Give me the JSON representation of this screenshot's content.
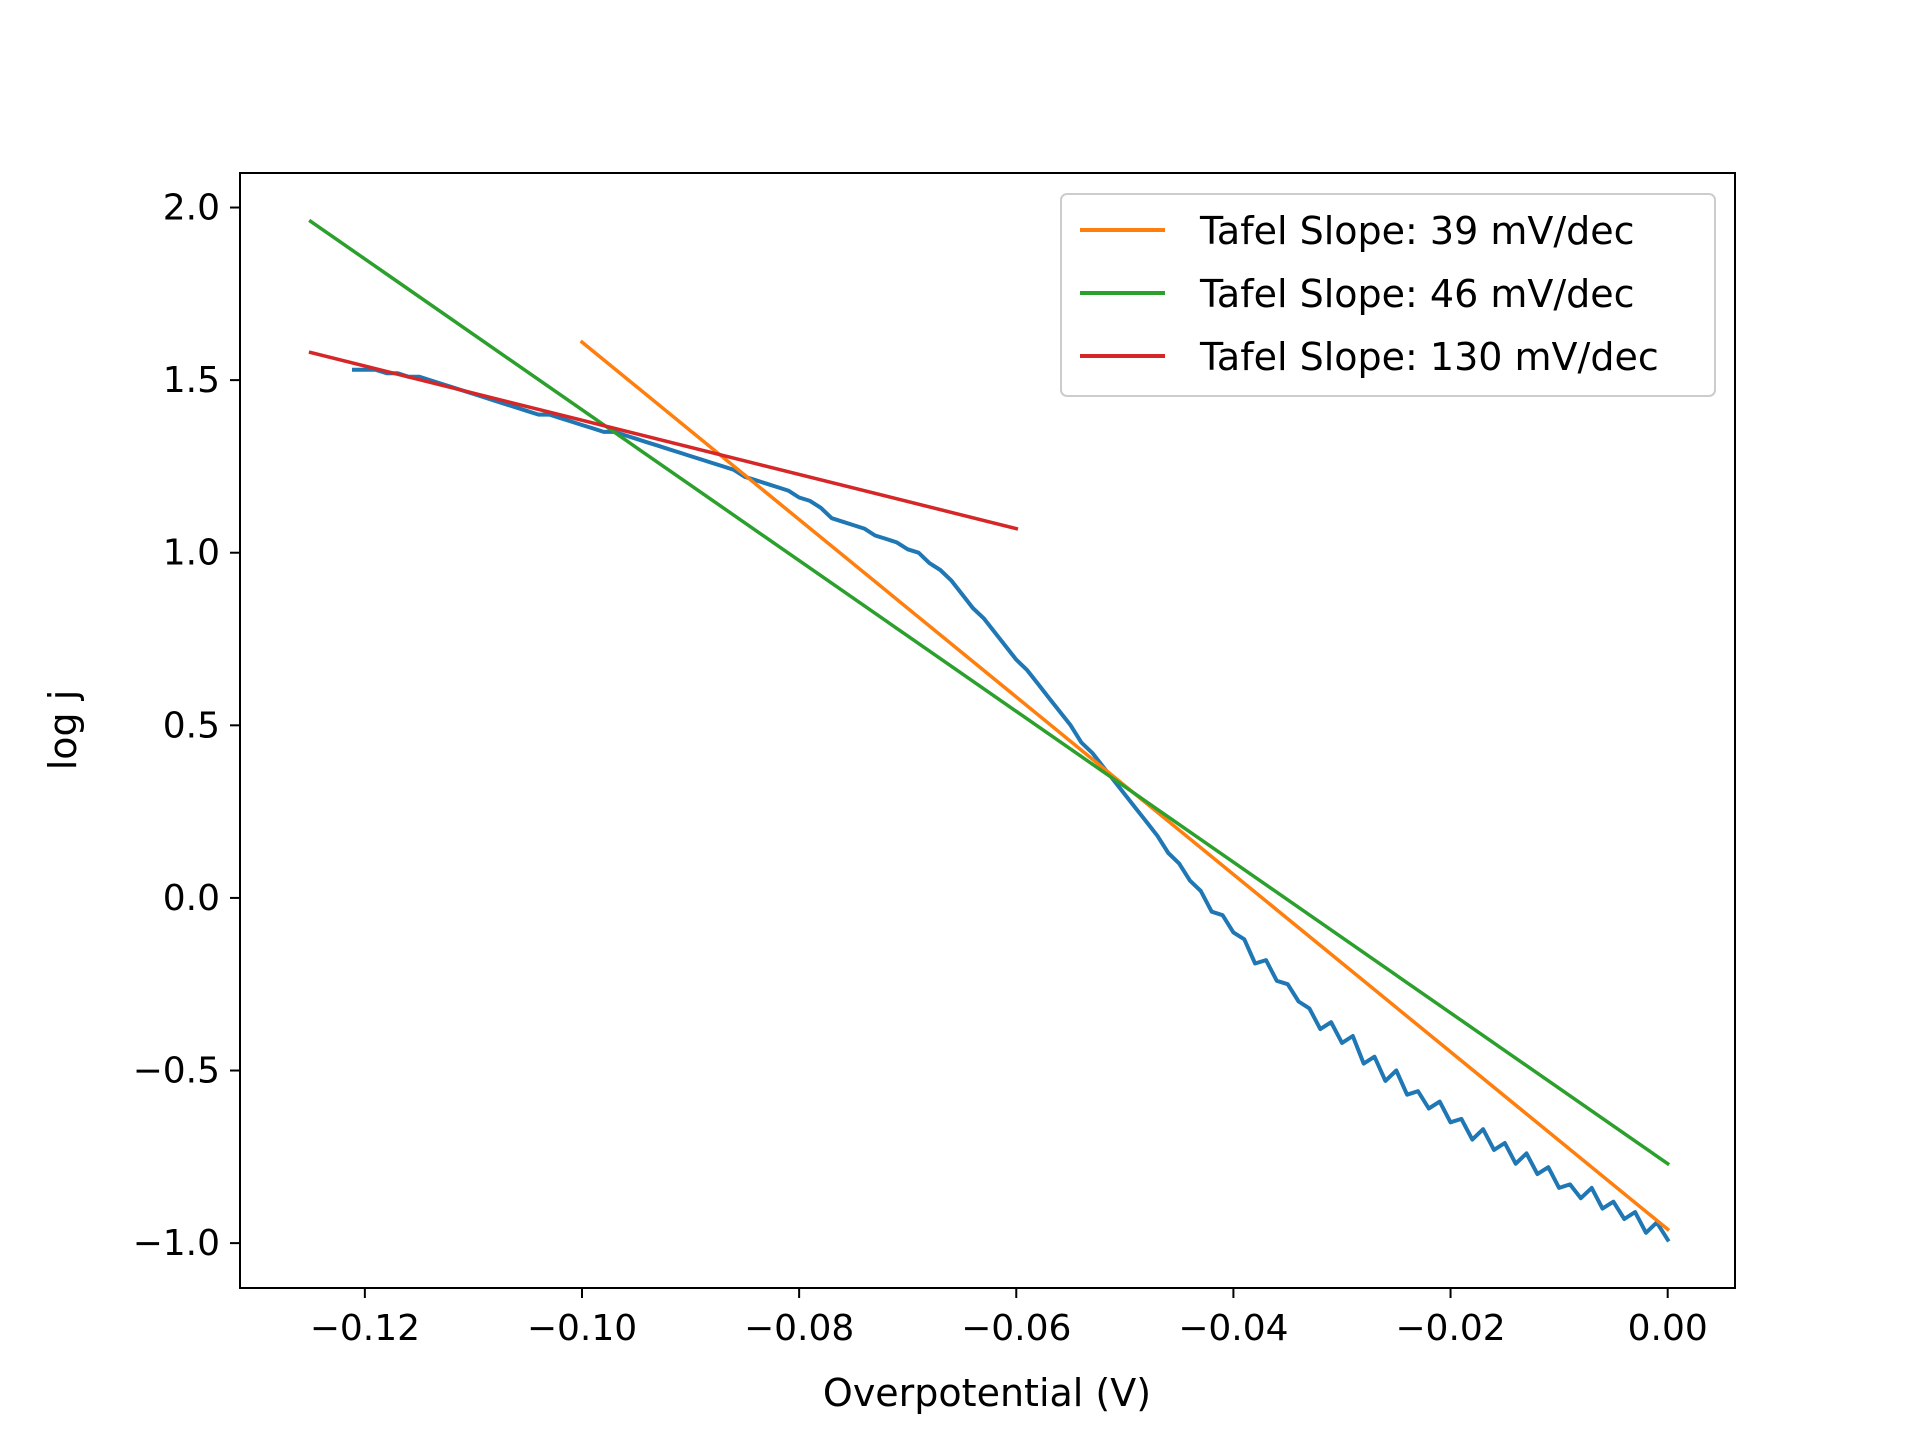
{
  "chart_data": {
    "type": "line",
    "xlabel": "Overpotential (V)",
    "ylabel": "log j",
    "xlim": [
      -0.1315,
      0.0062
    ],
    "ylim": [
      -1.13,
      2.1
    ],
    "xticks": [
      -0.12,
      -0.1,
      -0.08,
      -0.06,
      -0.04,
      -0.02,
      0.0
    ],
    "xtick_labels": [
      "−0.12",
      "−0.10",
      "−0.08",
      "−0.06",
      "−0.04",
      "−0.02",
      "0.00"
    ],
    "yticks": [
      2.0,
      1.5,
      1.0,
      0.5,
      0.0,
      -0.5,
      -1.0
    ],
    "ytick_labels": [
      "2.0",
      "1.5",
      "1.0",
      "0.5",
      "0.0",
      "−0.5",
      "−1.0"
    ],
    "legend_position": "top-right",
    "series": [
      {
        "color": "#1f77b4",
        "x": [
          0.0,
          -0.001,
          -0.002,
          -0.003,
          -0.004,
          -0.005,
          -0.006,
          -0.007,
          -0.008,
          -0.009,
          -0.01,
          -0.011,
          -0.012,
          -0.013,
          -0.014,
          -0.015,
          -0.016,
          -0.017,
          -0.018,
          -0.019,
          -0.02,
          -0.021,
          -0.022,
          -0.023,
          -0.024,
          -0.025,
          -0.026,
          -0.027,
          -0.028,
          -0.029,
          -0.03,
          -0.031,
          -0.032,
          -0.033,
          -0.034,
          -0.035,
          -0.036,
          -0.037,
          -0.038,
          -0.039,
          -0.04,
          -0.041,
          -0.042,
          -0.043,
          -0.044,
          -0.045,
          -0.046,
          -0.047,
          -0.048,
          -0.049,
          -0.05,
          -0.051,
          -0.052,
          -0.053,
          -0.054,
          -0.055,
          -0.056,
          -0.057,
          -0.058,
          -0.059,
          -0.06,
          -0.061,
          -0.062,
          -0.063,
          -0.064,
          -0.065,
          -0.066,
          -0.067,
          -0.068,
          -0.069,
          -0.07,
          -0.071,
          -0.072,
          -0.073,
          -0.074,
          -0.075,
          -0.076,
          -0.077,
          -0.078,
          -0.079,
          -0.08,
          -0.081,
          -0.082,
          -0.083,
          -0.084,
          -0.085,
          -0.086,
          -0.087,
          -0.088,
          -0.089,
          -0.09,
          -0.091,
          -0.092,
          -0.093,
          -0.094,
          -0.095,
          -0.096,
          -0.097,
          -0.098,
          -0.099,
          -0.1,
          -0.101,
          -0.102,
          -0.103,
          -0.104,
          -0.105,
          -0.106,
          -0.107,
          -0.108,
          -0.109,
          -0.11,
          -0.111,
          -0.112,
          -0.113,
          -0.114,
          -0.115,
          -0.116,
          -0.117,
          -0.118,
          -0.119,
          -0.12,
          -0.121
        ],
        "values": [
          -0.99,
          -0.94,
          -0.97,
          -0.91,
          -0.93,
          -0.88,
          -0.9,
          -0.84,
          -0.87,
          -0.83,
          -0.84,
          -0.78,
          -0.8,
          -0.74,
          -0.77,
          -0.71,
          -0.73,
          -0.67,
          -0.7,
          -0.64,
          -0.65,
          -0.59,
          -0.61,
          -0.56,
          -0.57,
          -0.5,
          -0.53,
          -0.46,
          -0.48,
          -0.4,
          -0.42,
          -0.36,
          -0.38,
          -0.32,
          -0.3,
          -0.25,
          -0.24,
          -0.18,
          -0.19,
          -0.12,
          -0.1,
          -0.05,
          -0.04,
          0.02,
          0.05,
          0.1,
          0.13,
          0.18,
          0.22,
          0.26,
          0.3,
          0.34,
          0.38,
          0.42,
          0.45,
          0.5,
          0.54,
          0.58,
          0.62,
          0.66,
          0.69,
          0.73,
          0.77,
          0.81,
          0.84,
          0.88,
          0.92,
          0.95,
          0.97,
          1.0,
          1.01,
          1.03,
          1.04,
          1.05,
          1.07,
          1.08,
          1.09,
          1.1,
          1.13,
          1.15,
          1.16,
          1.18,
          1.19,
          1.2,
          1.21,
          1.22,
          1.24,
          1.25,
          1.26,
          1.27,
          1.28,
          1.29,
          1.3,
          1.31,
          1.32,
          1.33,
          1.34,
          1.35,
          1.35,
          1.36,
          1.37,
          1.38,
          1.39,
          1.4,
          1.4,
          1.41,
          1.42,
          1.43,
          1.44,
          1.45,
          1.46,
          1.47,
          1.48,
          1.49,
          1.5,
          1.51,
          1.51,
          1.52,
          1.52,
          1.53,
          1.53,
          1.53
        ]
      },
      {
        "name": "Tafel Slope: 39 mV/dec",
        "color": "#ff7f0e",
        "x": [
          -0.1,
          0.0
        ],
        "values": [
          1.61,
          -0.96
        ]
      },
      {
        "name": "Tafel Slope: 46 mV/dec",
        "color": "#2ca02c",
        "x": [
          -0.125,
          0.0
        ],
        "values": [
          1.96,
          -0.77
        ]
      },
      {
        "name": "Tafel Slope: 130 mV/dec",
        "color": "#d62728",
        "x": [
          -0.125,
          -0.06
        ],
        "values": [
          1.58,
          1.07
        ]
      }
    ]
  }
}
